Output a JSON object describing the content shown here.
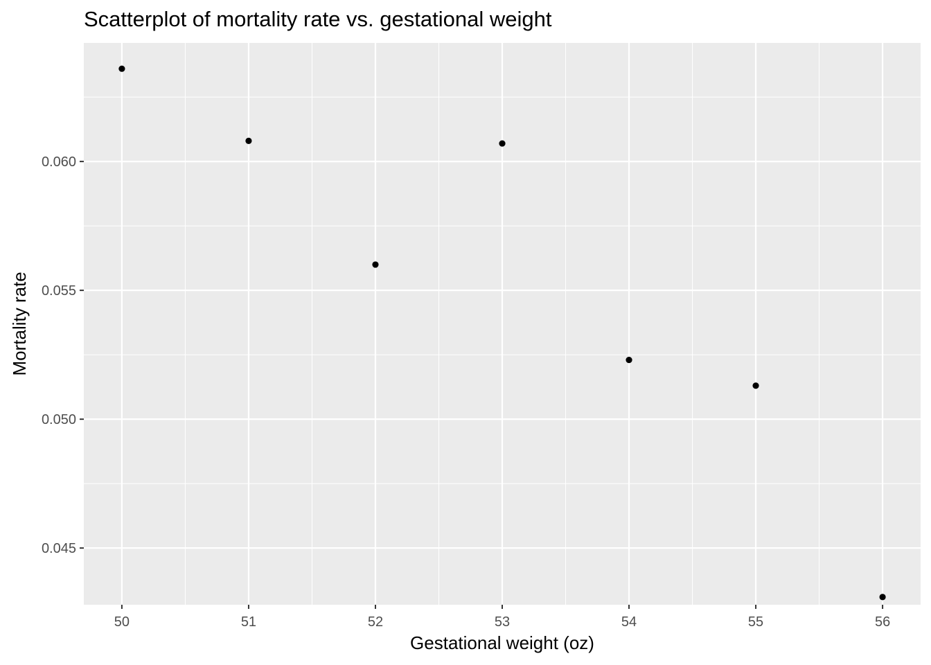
{
  "chart_data": {
    "type": "scatter",
    "title": "Scatterplot of mortality rate vs. gestational weight",
    "xlabel": "Gestational weight (oz)",
    "ylabel": "Mortality rate",
    "x": [
      50,
      51,
      52,
      53,
      54,
      55,
      56
    ],
    "y": [
      0.0636,
      0.0608,
      0.056,
      0.0607,
      0.0523,
      0.0513,
      0.0431
    ],
    "xlim": [
      49.7,
      56.3
    ],
    "ylim": [
      0.0428,
      0.0646
    ],
    "x_ticks": [
      50,
      51,
      52,
      53,
      54,
      55,
      56
    ],
    "x_tick_labels": [
      "50",
      "51",
      "52",
      "53",
      "54",
      "55",
      "56"
    ],
    "y_ticks": [
      0.045,
      0.05,
      0.055,
      0.06
    ],
    "y_tick_labels": [
      "0.045",
      "0.050",
      "0.055",
      "0.060"
    ],
    "grid": true,
    "legend": "none",
    "colors": {
      "panel": "#ebebeb",
      "grid": "#ffffff",
      "point": "#000000",
      "tick_text": "#4d4d4d"
    }
  }
}
